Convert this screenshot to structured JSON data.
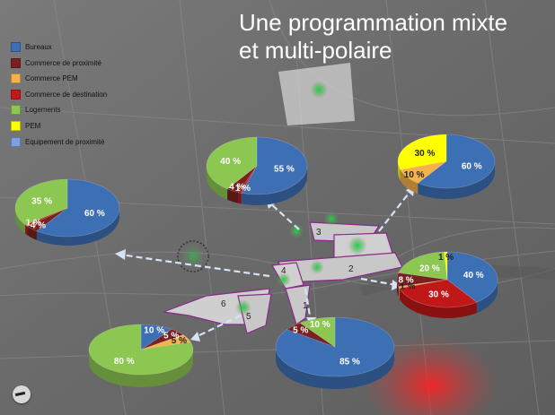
{
  "title_line1": "Une programmation mixte",
  "title_line2": "et multi-polaire",
  "legend": [
    {
      "label": "Bureaux",
      "color": "#3d6fb5"
    },
    {
      "label": "Commerce de proximité",
      "color": "#7a2020"
    },
    {
      "label": "Commerce PEM",
      "color": "#f5b14a"
    },
    {
      "label": "Commerce de destination",
      "color": "#c01818"
    },
    {
      "label": "Logements",
      "color": "#8cc751"
    },
    {
      "label": "PEM",
      "color": "#ffff00"
    },
    {
      "label": "Equipement de proximité",
      "color": "#7e9fe0"
    }
  ],
  "zone_labels": [
    "1",
    "2",
    "3",
    "4",
    "5",
    "6"
  ],
  "colors": {
    "Bureaux": "#3d6fb5",
    "Commerce de proximité": "#7a2020",
    "Commerce PEM": "#f5b14a",
    "Commerce de destination": "#c01818",
    "Logements": "#8cc751",
    "PEM": "#ffff00",
    "Equipement de proximité": "#7e9fe0",
    "Commerce": "#a33a3a",
    "Logements_dark": "#8cc751",
    "Commerce_rose": "#e8a07a"
  },
  "chart_data": [
    {
      "type": "pie",
      "slices": [
        {
          "category": "Bureaux",
          "value": 60,
          "label": "60 %"
        },
        {
          "category": "Commerce de proximité",
          "value": 4,
          "label": "4 %"
        },
        {
          "category": "Commerce de destination",
          "value": 1,
          "label": "1 %"
        },
        {
          "category": "Logements",
          "value": 35,
          "label": "35 %"
        }
      ]
    },
    {
      "type": "pie",
      "slices": [
        {
          "category": "Bureaux",
          "value": 55,
          "label": "55 %"
        },
        {
          "category": "Commerce de destination",
          "value": 1,
          "label": "1 %"
        },
        {
          "category": "Commerce de proximité",
          "value": 4,
          "label": "4 %"
        },
        {
          "category": "Logements",
          "value": 40,
          "label": "40 %"
        }
      ]
    },
    {
      "type": "pie",
      "slices": [
        {
          "category": "Bureaux",
          "value": 60,
          "label": "60 %"
        },
        {
          "category": "Commerce PEM",
          "value": 10,
          "label": "10 %"
        },
        {
          "category": "PEM",
          "value": 30,
          "label": "30 %"
        }
      ]
    },
    {
      "type": "pie",
      "slices": [
        {
          "category": "Bureaux",
          "value": 40,
          "label": "40 %"
        },
        {
          "category": "Commerce de destination",
          "value": 30,
          "label": "30 %"
        },
        {
          "category": "Commerce PEM",
          "value": 1,
          "label": "1 %"
        },
        {
          "category": "Commerce de proximité",
          "value": 8,
          "label": "8 %"
        },
        {
          "category": "Logements",
          "value": 20,
          "label": "20 %"
        },
        {
          "category": "PEM",
          "value": 1,
          "label": "1 %"
        }
      ]
    },
    {
      "type": "pie",
      "slices": [
        {
          "category": "Bureaux",
          "value": 85,
          "label": "85 %"
        },
        {
          "category": "Commerce de proximité",
          "value": 5,
          "label": "5 %"
        },
        {
          "category": "Logements",
          "value": 10,
          "label": "10 %"
        }
      ]
    },
    {
      "type": "pie",
      "slices": [
        {
          "category": "Bureaux",
          "value": 10,
          "label": "10 %"
        },
        {
          "category": "Commerce de proximité",
          "value": 5,
          "label": "5 %"
        },
        {
          "category": "Commerce PEM",
          "value": 5,
          "label": "5 %"
        },
        {
          "category": "Logements",
          "value": 80,
          "label": "80 %"
        }
      ]
    }
  ]
}
